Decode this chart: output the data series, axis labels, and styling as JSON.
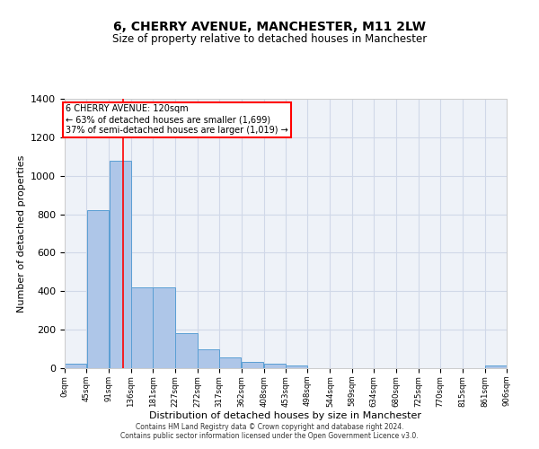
{
  "title": "6, CHERRY AVENUE, MANCHESTER, M11 2LW",
  "subtitle": "Size of property relative to detached houses in Manchester",
  "xlabel": "Distribution of detached houses by size in Manchester",
  "ylabel": "Number of detached properties",
  "footer_line1": "Contains HM Land Registry data © Crown copyright and database right 2024.",
  "footer_line2": "Contains public sector information licensed under the Open Government Licence v3.0.",
  "bin_edges": [
    0,
    45,
    91,
    136,
    181,
    227,
    272,
    317,
    362,
    408,
    453,
    498,
    544,
    589,
    634,
    680,
    725,
    770,
    815,
    861,
    906
  ],
  "bar_heights": [
    25,
    820,
    1080,
    420,
    420,
    180,
    100,
    55,
    35,
    25,
    15,
    0,
    0,
    0,
    0,
    0,
    0,
    0,
    0,
    15
  ],
  "bar_color": "#aec6e8",
  "bar_edge_color": "#5a9fd4",
  "grid_color": "#d0d8e8",
  "background_color": "#eef2f8",
  "annotation_line1": "6 CHERRY AVENUE: 120sqm",
  "annotation_line2": "← 63% of detached houses are smaller (1,699)",
  "annotation_line3": "37% of semi-detached houses are larger (1,019) →",
  "annotation_box_color": "red",
  "property_line_x": 120,
  "property_line_color": "red",
  "ylim": [
    0,
    1400
  ],
  "yticks": [
    0,
    200,
    400,
    600,
    800,
    1000,
    1200,
    1400
  ],
  "x_tick_labels": [
    "0sqm",
    "45sqm",
    "91sqm",
    "136sqm",
    "181sqm",
    "227sqm",
    "272sqm",
    "317sqm",
    "362sqm",
    "408sqm",
    "453sqm",
    "498sqm",
    "544sqm",
    "589sqm",
    "634sqm",
    "680sqm",
    "725sqm",
    "770sqm",
    "815sqm",
    "861sqm",
    "906sqm"
  ]
}
